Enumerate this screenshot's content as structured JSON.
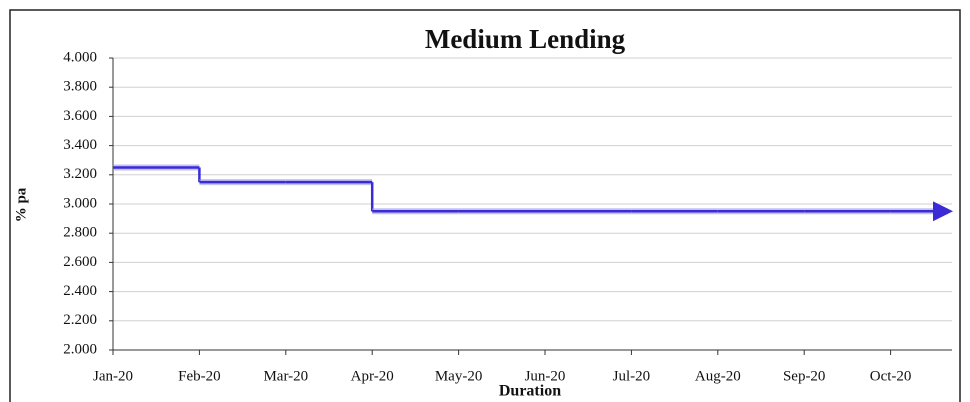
{
  "chart_data": {
    "type": "line",
    "step": true,
    "title": "Medium Lending",
    "xlabel": "Duration",
    "ylabel": "% pa",
    "categories": [
      "Jan-20",
      "Feb-20",
      "Mar-20",
      "Apr-20",
      "May-20",
      "Jun-20",
      "Jul-20",
      "Aug-20",
      "Sep-20",
      "Oct-20"
    ],
    "values": [
      3.25,
      3.15,
      3.15,
      2.95,
      2.95,
      2.95,
      2.95,
      2.95,
      2.95,
      2.95
    ],
    "color": "#3a2bd6",
    "ylim": [
      2,
      4
    ],
    "yticks": [
      {
        "value": 2,
        "label": "2.000"
      },
      {
        "value": 2.2,
        "label": "2.200"
      },
      {
        "value": 2.4,
        "label": "2.400"
      },
      {
        "value": 2.6,
        "label": "2.600"
      },
      {
        "value": 2.8,
        "label": "2.800"
      },
      {
        "value": 3,
        "label": "3.000"
      },
      {
        "value": 3.2,
        "label": "3.200"
      },
      {
        "value": 3.4,
        "label": "3.400"
      },
      {
        "value": 3.6,
        "label": "3.600"
      },
      {
        "value": 3.8,
        "label": "3.800"
      },
      {
        "value": 4,
        "label": "4.000"
      }
    ],
    "grid": true
  }
}
